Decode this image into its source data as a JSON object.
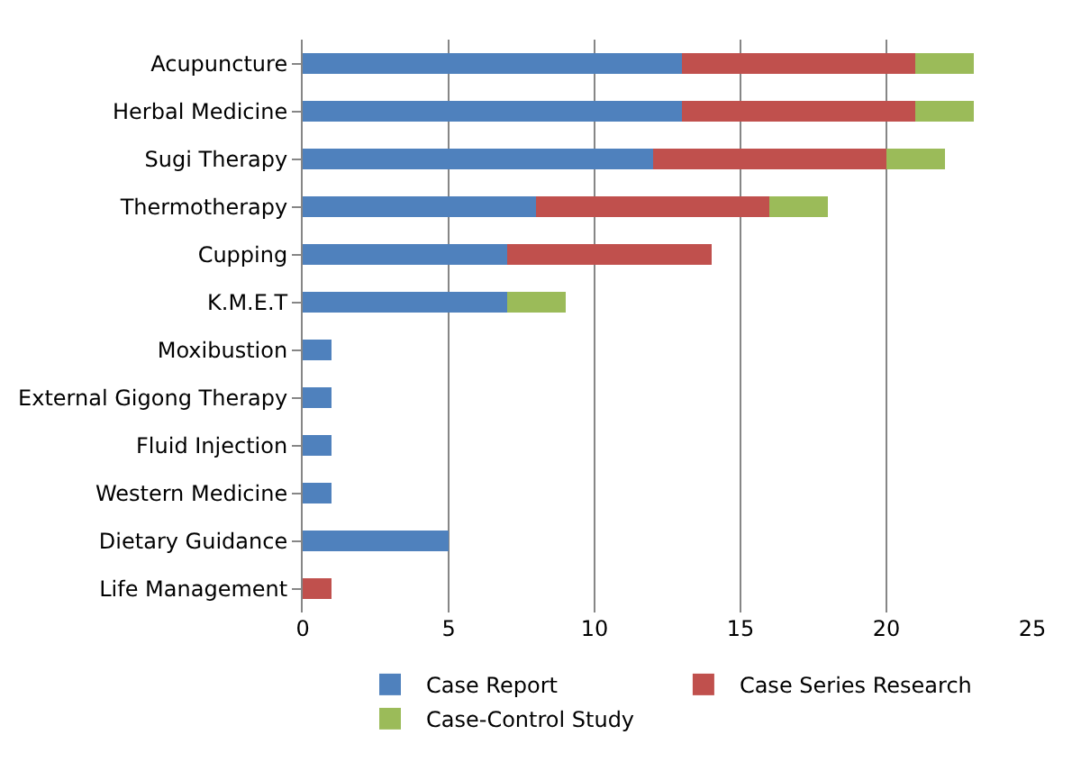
{
  "chart_data": {
    "type": "bar",
    "orientation": "horizontal",
    "stacked": true,
    "categories": [
      "Acupuncture",
      "Herbal Medicine",
      "Sugi Therapy",
      "Thermotherapy",
      "Cupping",
      "K.M.E.T",
      "Moxibustion",
      "External Gigong Therapy",
      "Fluid Injection",
      "Western Medicine",
      "Dietary Guidance",
      "Life Management"
    ],
    "series": [
      {
        "name": "Case Report",
        "color": "#4f81bd",
        "values": [
          13,
          13,
          12,
          8,
          7,
          7,
          1,
          1,
          1,
          1,
          5,
          0
        ]
      },
      {
        "name": "Case Series Research",
        "color": "#c0504d",
        "values": [
          8,
          8,
          8,
          8,
          7,
          0,
          0,
          0,
          0,
          0,
          0,
          1
        ]
      },
      {
        "name": "Case-Control Study",
        "color": "#9bbb59",
        "values": [
          2,
          2,
          2,
          2,
          0,
          2,
          0,
          0,
          0,
          0,
          0,
          0
        ]
      }
    ],
    "xlim": [
      0,
      25
    ],
    "xticks": [
      0,
      5,
      10,
      15,
      20,
      25
    ],
    "grid": "x",
    "legend": "bottom"
  }
}
